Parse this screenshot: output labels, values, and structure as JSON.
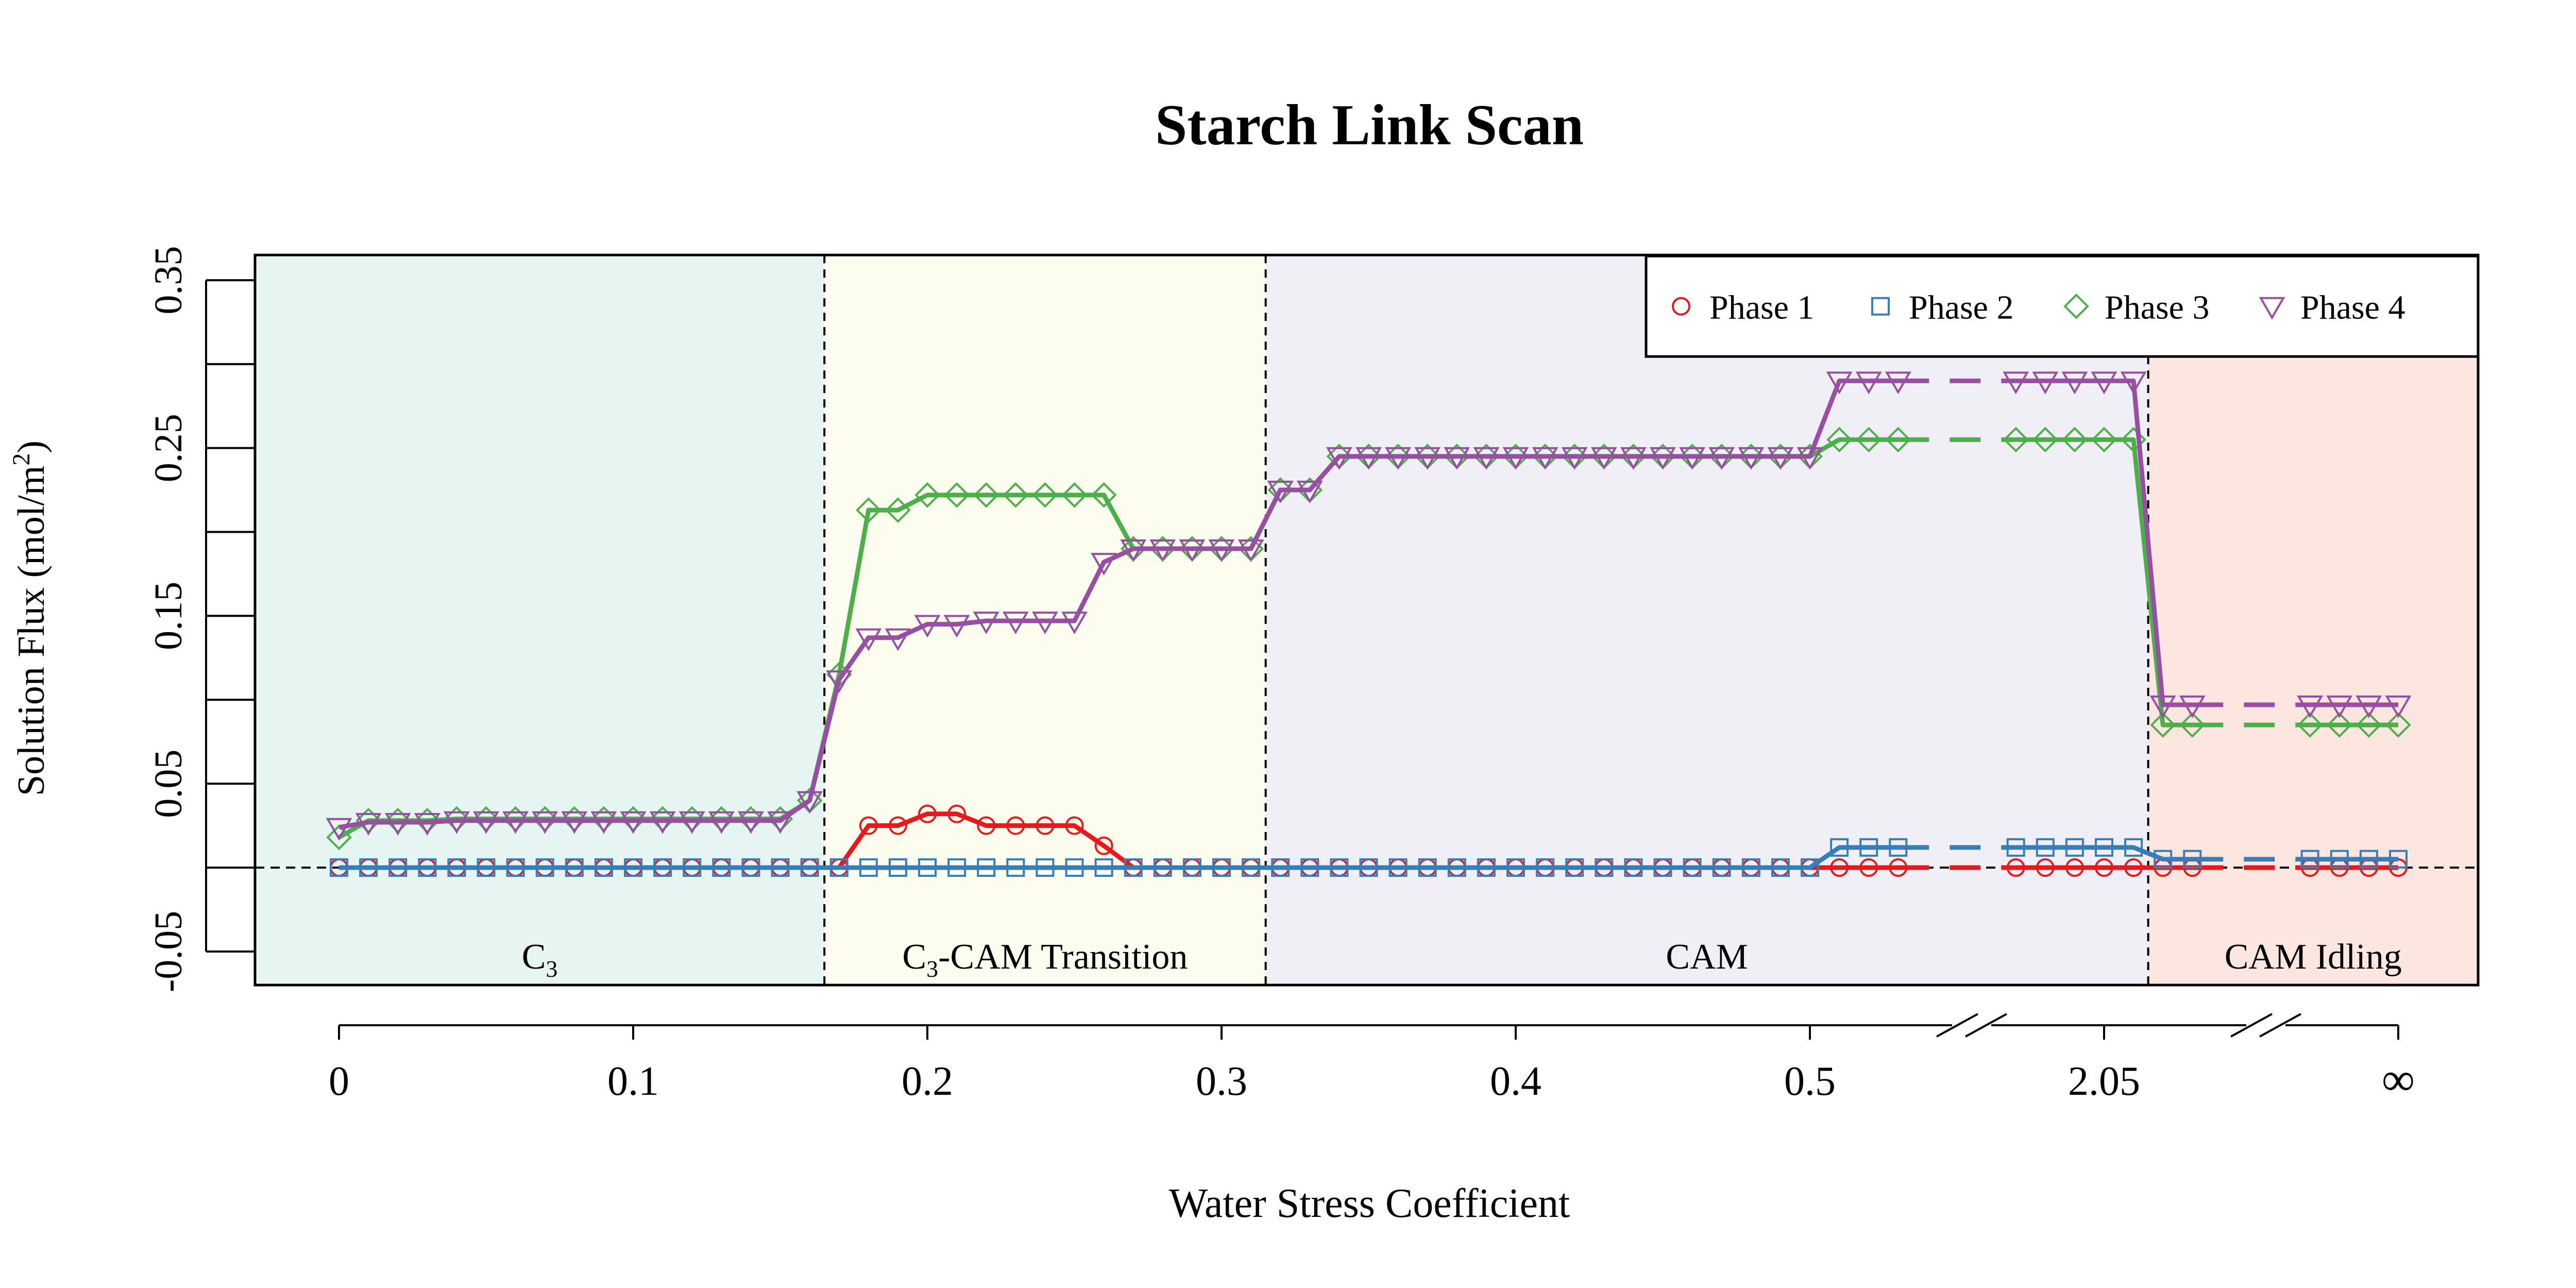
{
  "chart_data": {
    "type": "line",
    "title": "Starch Link Scan",
    "xlabel": "Water Stress Coefficient",
    "ylabel_main": "Solution Flux (mol/m",
    "ylabel_sup": "2",
    "ylabel_close": ")",
    "ylim": [
      -0.07,
      0.365
    ],
    "grid": false,
    "legend_position": "top-right",
    "yticks": [
      "-0.05",
      "0.05",
      "0.15",
      "0.25",
      "0.35"
    ],
    "ytick_values": [
      -0.05,
      0.05,
      0.15,
      0.25,
      0.35
    ],
    "ytick_minor_values": [
      0.0,
      0.1,
      0.2,
      0.3
    ],
    "xticks": [
      "0",
      "0.1",
      "0.2",
      "0.3",
      "0.4",
      "0.5",
      "2.05",
      "∞"
    ],
    "xtick_index_positions": [
      0,
      10,
      20,
      30,
      40,
      50,
      60,
      70
    ],
    "x_axis_breaks_after_index": [
      55,
      65
    ],
    "region_boundaries_index": [
      16.5,
      31.5,
      61.5
    ],
    "regions": [
      {
        "label": "C",
        "sub": "3",
        "suffix": "",
        "color": "#e6f5f1"
      },
      {
        "label": "C",
        "sub": "3",
        "suffix": "-CAM Transition",
        "color": "#fdfdef"
      },
      {
        "label": "CAM",
        "sub": "",
        "suffix": "",
        "color": "#f0eff6"
      },
      {
        "label": "CAM Idling",
        "sub": "",
        "suffix": "",
        "color": "#fce6df"
      }
    ],
    "reference_line_y": 0,
    "series": [
      {
        "name": "Phase 1",
        "color": "#e41a1c",
        "marker": "circle",
        "segments": [
          {
            "x": [
              0,
              1,
              2,
              3,
              4,
              5,
              6,
              7,
              8,
              9,
              10,
              11,
              12,
              13,
              14,
              15,
              16,
              17,
              18,
              19,
              20,
              21,
              22,
              23,
              24,
              25,
              26,
              27,
              28,
              29,
              30,
              31,
              32,
              33,
              34,
              35,
              36,
              37,
              38,
              39,
              40,
              41,
              42,
              43,
              44,
              45,
              46,
              47,
              48,
              49,
              50,
              51,
              52,
              53
            ],
            "y": [
              0,
              0,
              0,
              0,
              0,
              0,
              0,
              0,
              0,
              0,
              0,
              0,
              0,
              0,
              0,
              0,
              0,
              0,
              0.025,
              0.025,
              0.032,
              0.032,
              0.025,
              0.025,
              0.025,
              0.025,
              0.013,
              0,
              0,
              0,
              0,
              0,
              0,
              0,
              0,
              0,
              0,
              0,
              0,
              0,
              0,
              0,
              0,
              0,
              0,
              0,
              0,
              0,
              0,
              0,
              0,
              0,
              0,
              0
            ]
          },
          {
            "x": [
              57,
              58,
              59,
              60,
              61,
              62,
              63
            ],
            "y": [
              0,
              0,
              0,
              0,
              0,
              0,
              0
            ]
          },
          {
            "x": [
              67,
              68,
              69,
              70
            ],
            "y": [
              0,
              0,
              0,
              0
            ]
          }
        ],
        "dashed_links": [
          [
            53,
            57
          ],
          [
            63,
            67
          ]
        ]
      },
      {
        "name": "Phase 2",
        "color": "#377eb8",
        "marker": "square",
        "segments": [
          {
            "x": [
              0,
              1,
              2,
              3,
              4,
              5,
              6,
              7,
              8,
              9,
              10,
              11,
              12,
              13,
              14,
              15,
              16,
              17,
              18,
              19,
              20,
              21,
              22,
              23,
              24,
              25,
              26,
              27,
              28,
              29,
              30,
              31,
              32,
              33,
              34,
              35,
              36,
              37,
              38,
              39,
              40,
              41,
              42,
              43,
              44,
              45,
              46,
              47,
              48,
              49,
              50,
              51,
              52,
              53
            ],
            "y": [
              0,
              0,
              0,
              0,
              0,
              0,
              0,
              0,
              0,
              0,
              0,
              0,
              0,
              0,
              0,
              0,
              0,
              0,
              0,
              0,
              0,
              0,
              0,
              0,
              0,
              0,
              0,
              0,
              0,
              0,
              0,
              0,
              0,
              0,
              0,
              0,
              0,
              0,
              0,
              0,
              0,
              0,
              0,
              0,
              0,
              0,
              0,
              0,
              0,
              0,
              0,
              0.012,
              0.012,
              0.012
            ]
          },
          {
            "x": [
              57,
              58,
              59,
              60,
              61,
              62,
              63
            ],
            "y": [
              0.012,
              0.012,
              0.012,
              0.012,
              0.012,
              0.005,
              0.005
            ]
          },
          {
            "x": [
              67,
              68,
              69,
              70
            ],
            "y": [
              0.005,
              0.005,
              0.005,
              0.005
            ]
          }
        ],
        "dashed_links": [
          [
            53,
            57
          ],
          [
            63,
            67
          ]
        ]
      },
      {
        "name": "Phase 3",
        "color": "#4daf4a",
        "marker": "diamond",
        "segments": [
          {
            "x": [
              0,
              1,
              2,
              3,
              4,
              5,
              6,
              7,
              8,
              9,
              10,
              11,
              12,
              13,
              14,
              15,
              16,
              17,
              18,
              19,
              20,
              21,
              22,
              23,
              24,
              25,
              26,
              27,
              28,
              29,
              30,
              31,
              32,
              33,
              34,
              35,
              36,
              37,
              38,
              39,
              40,
              41,
              42,
              43,
              44,
              45,
              46,
              47,
              48,
              49,
              50,
              51,
              52,
              53
            ],
            "y": [
              0.018,
              0.028,
              0.028,
              0.028,
              0.029,
              0.029,
              0.029,
              0.029,
              0.029,
              0.029,
              0.029,
              0.029,
              0.029,
              0.029,
              0.029,
              0.029,
              0.04,
              0.115,
              0.213,
              0.213,
              0.222,
              0.222,
              0.222,
              0.222,
              0.222,
              0.222,
              0.222,
              0.19,
              0.19,
              0.19,
              0.19,
              0.19,
              0.225,
              0.225,
              0.245,
              0.245,
              0.245,
              0.245,
              0.245,
              0.245,
              0.245,
              0.245,
              0.245,
              0.245,
              0.245,
              0.245,
              0.245,
              0.245,
              0.245,
              0.245,
              0.245,
              0.255,
              0.255,
              0.255
            ]
          },
          {
            "x": [
              57,
              58,
              59,
              60,
              61,
              62,
              63
            ],
            "y": [
              0.255,
              0.255,
              0.255,
              0.255,
              0.255,
              0.085,
              0.085
            ]
          },
          {
            "x": [
              67,
              68,
              69,
              70
            ],
            "y": [
              0.085,
              0.085,
              0.085,
              0.085
            ]
          }
        ],
        "dashed_links": [
          [
            53,
            57
          ],
          [
            63,
            67
          ]
        ]
      },
      {
        "name": "Phase 4",
        "color": "#984ea3",
        "marker": "triangle-down",
        "segments": [
          {
            "x": [
              0,
              1,
              2,
              3,
              4,
              5,
              6,
              7,
              8,
              9,
              10,
              11,
              12,
              13,
              14,
              15,
              16,
              17,
              18,
              19,
              20,
              21,
              22,
              23,
              24,
              25,
              26,
              27,
              28,
              29,
              30,
              31,
              32,
              33,
              34,
              35,
              36,
              37,
              38,
              39,
              40,
              41,
              42,
              43,
              44,
              45,
              46,
              47,
              48,
              49,
              50,
              51,
              52,
              53
            ],
            "y": [
              0.024,
              0.027,
              0.027,
              0.027,
              0.028,
              0.028,
              0.028,
              0.028,
              0.028,
              0.028,
              0.028,
              0.028,
              0.028,
              0.028,
              0.028,
              0.028,
              0.04,
              0.112,
              0.137,
              0.137,
              0.145,
              0.145,
              0.147,
              0.147,
              0.147,
              0.147,
              0.182,
              0.19,
              0.19,
              0.19,
              0.19,
              0.19,
              0.225,
              0.225,
              0.245,
              0.245,
              0.245,
              0.245,
              0.245,
              0.245,
              0.245,
              0.245,
              0.245,
              0.245,
              0.245,
              0.245,
              0.245,
              0.245,
              0.245,
              0.245,
              0.245,
              0.29,
              0.29,
              0.29
            ]
          },
          {
            "x": [
              57,
              58,
              59,
              60,
              61,
              62,
              63
            ],
            "y": [
              0.29,
              0.29,
              0.29,
              0.29,
              0.29,
              0.097,
              0.097
            ]
          },
          {
            "x": [
              67,
              68,
              69,
              70
            ],
            "y": [
              0.097,
              0.097,
              0.097,
              0.097
            ]
          }
        ],
        "dashed_links": [
          [
            53,
            57
          ],
          [
            63,
            67
          ]
        ]
      }
    ]
  }
}
